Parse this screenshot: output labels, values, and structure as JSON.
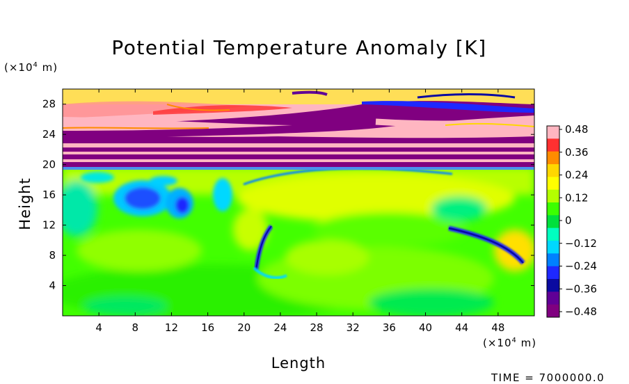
{
  "chart_data": {
    "type": "heatmap",
    "title": "Potential Temperature Anomaly [K]",
    "xlabel": "Length",
    "ylabel": "Height",
    "x_unit": "(×10⁴ m)",
    "y_unit": "(×10⁴ m)",
    "xlim": [
      0,
      52
    ],
    "ylim": [
      0,
      30
    ],
    "x_ticks": [
      4,
      8,
      12,
      16,
      20,
      24,
      28,
      32,
      36,
      40,
      44,
      48
    ],
    "y_ticks": [
      4,
      8,
      12,
      16,
      20,
      24,
      28
    ],
    "colorbar": {
      "min": -0.48,
      "max": 0.48,
      "labels": [
        "0.48",
        "0.36",
        "0.24",
        "0.12",
        "0",
        "−0.12",
        "−0.24",
        "−0.36",
        "−0.48"
      ],
      "colors": [
        "#ffb6c1",
        "#ff3030",
        "#ff8c00",
        "#ffd700",
        "#ffff00",
        "#b4ff00",
        "#3cff00",
        "#00e03c",
        "#00ffc0",
        "#00d8ff",
        "#0080ff",
        "#1e28ff",
        "#0a0aa0",
        "#600096",
        "#800080"
      ]
    },
    "time_label": "TIME = 7000000.0"
  }
}
